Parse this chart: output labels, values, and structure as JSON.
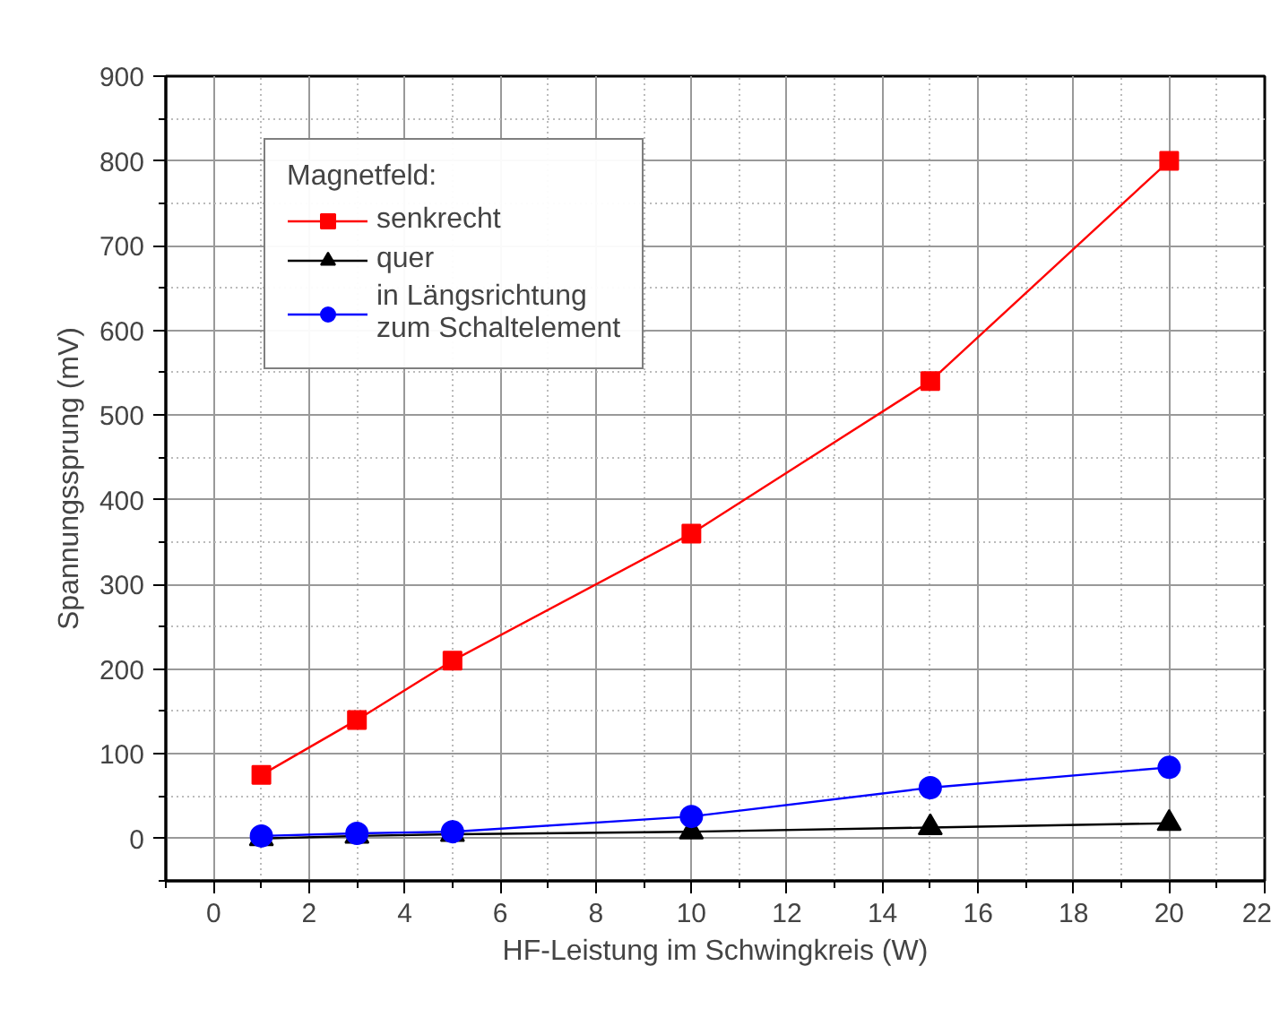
{
  "chart_data": {
    "type": "line",
    "xlabel": "HF-Leistung im Schwingkreis (W)",
    "ylabel": "Spannungssprung (mV)",
    "legend_title": "Magnetfeld:",
    "x": [
      1,
      3,
      5,
      10,
      15,
      20
    ],
    "series": [
      {
        "name": "senkrecht",
        "color": "#ff0000",
        "marker": "square",
        "values": [
          75,
          140,
          210,
          360,
          540,
          800
        ]
      },
      {
        "name": "quer",
        "color": "#000000",
        "marker": "triangle",
        "values": [
          0,
          3,
          5,
          8,
          13,
          18
        ]
      },
      {
        "name": "in Längsrichtung\nzum Schaltelement",
        "color": "#0000ff",
        "marker": "circle",
        "values": [
          3,
          6,
          8,
          26,
          60,
          84
        ]
      }
    ],
    "xlim": [
      -1,
      22
    ],
    "xticks": [
      0,
      2,
      4,
      6,
      8,
      10,
      12,
      14,
      16,
      18,
      20,
      22
    ],
    "ylim": [
      -50,
      900
    ],
    "yticks": [
      0,
      100,
      200,
      300,
      400,
      500,
      600,
      700,
      800,
      900
    ],
    "grid": true,
    "legend": "top left",
    "line_style": "solid"
  }
}
